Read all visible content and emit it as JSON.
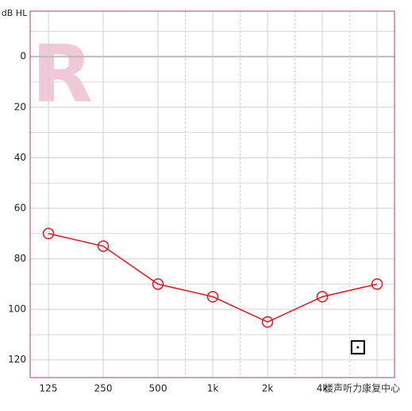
{
  "chart_data": {
    "type": "line",
    "y_label": "dB HL",
    "ear_label": "R",
    "watermark": "楼声听力康复中心",
    "categories": [
      "125",
      "250",
      "500",
      "1k",
      "2k",
      "4k",
      null
    ],
    "series": [
      {
        "name": null,
        "color": "#e8141c",
        "marker": "circle",
        "values": [
          70,
          75,
          90,
          95,
          105,
          95,
          90
        ]
      }
    ],
    "extra_marks": [
      {
        "x_index": 5.65,
        "value": 115,
        "symbol": "square-dot",
        "color": "#000000"
      }
    ],
    "ylim": [
      -18,
      127
    ],
    "yticks": [
      0,
      20,
      40,
      60,
      80,
      100,
      120
    ],
    "y_minor_ticks": [
      -10,
      10,
      30,
      50,
      70,
      90,
      110
    ],
    "y_inverted": true,
    "grid": true,
    "frame_color": "#c0307f"
  }
}
